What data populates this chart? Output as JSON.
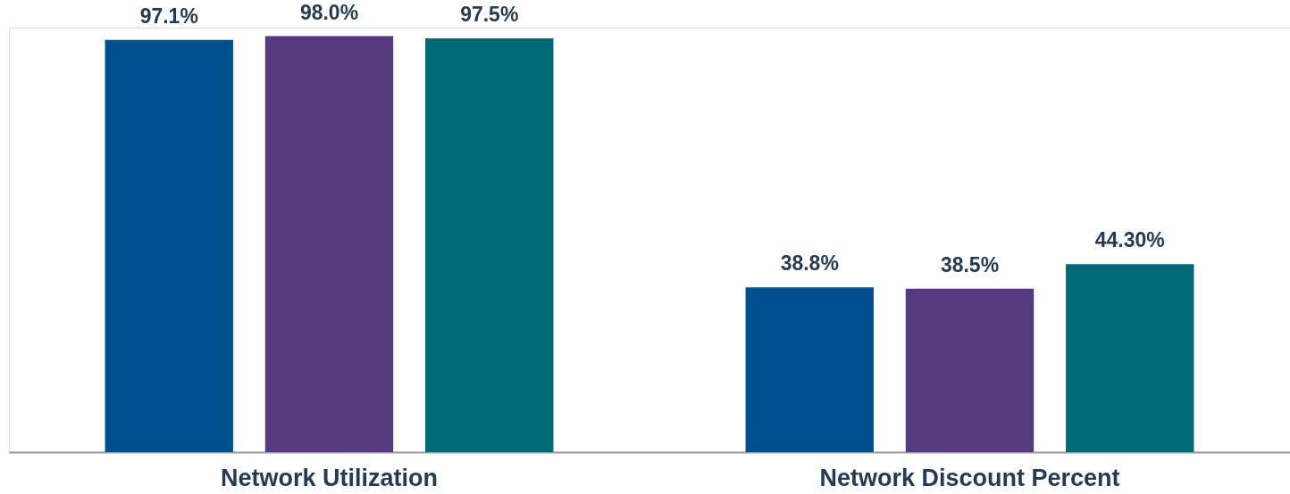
{
  "chart_data": {
    "type": "bar",
    "categories": [
      "Network Utilization",
      "Network Discount Percent"
    ],
    "series": [
      {
        "color": "#00508f",
        "values": [
          97.1,
          38.8
        ],
        "value_labels": [
          "97.1%",
          "38.8%"
        ]
      },
      {
        "color": "#563a80",
        "values": [
          98.0,
          38.5
        ],
        "value_labels": [
          "98.0%",
          "38.5%"
        ]
      },
      {
        "color": "#006a77",
        "values": [
          97.5,
          44.3
        ],
        "value_labels": [
          "97.5%",
          "44.30%"
        ]
      }
    ],
    "ylim": [
      0,
      100
    ],
    "tick_labels": "x",
    "grid": false,
    "legend": false
  }
}
